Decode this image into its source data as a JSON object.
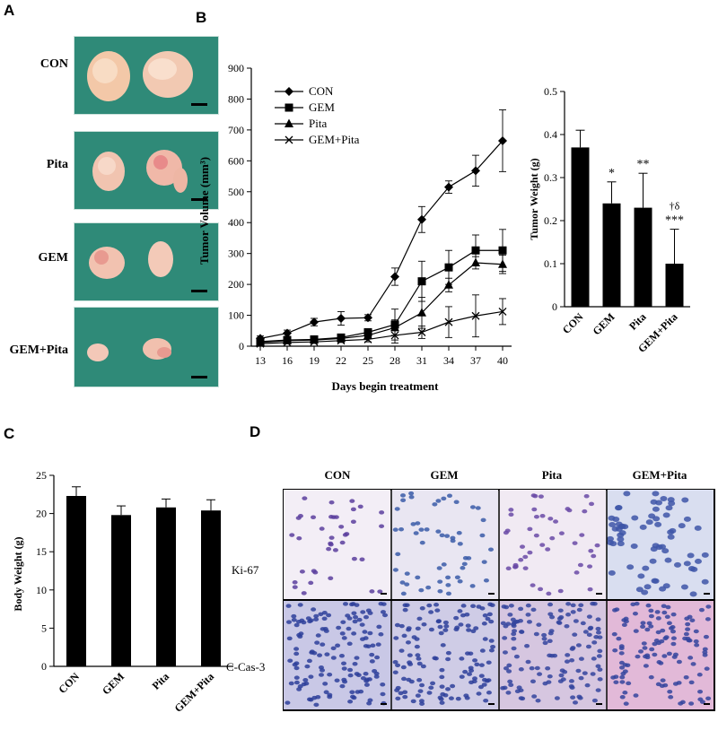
{
  "panels": {
    "a": {
      "letter": "A",
      "rows": [
        {
          "label": "CON"
        },
        {
          "label": "Pita"
        },
        {
          "label": "GEM"
        },
        {
          "label": "GEM+Pita"
        }
      ]
    },
    "b": {
      "letter": "B"
    },
    "c": {
      "letter": "C"
    },
    "d": {
      "letter": "D",
      "columns": [
        "CON",
        "GEM",
        "Pita",
        "GEM+Pita"
      ],
      "rows": [
        "Ki-67",
        "C-Cas-3"
      ]
    }
  },
  "chart_data": [
    {
      "id": "tumor-volume",
      "type": "line",
      "xlabel": "Days begin treatment",
      "ylabel": "Tumor Volume (mm³)",
      "x": [
        13,
        16,
        19,
        22,
        25,
        28,
        31,
        34,
        37,
        40
      ],
      "xlim": [
        12,
        41
      ],
      "ylim": [
        0,
        900
      ],
      "yticks": [
        0,
        100,
        200,
        300,
        400,
        500,
        600,
        700,
        800,
        900
      ],
      "legend_position": "top-left",
      "grid": false,
      "series": [
        {
          "name": "CON",
          "marker": "diamond",
          "values": [
            25,
            42,
            78,
            90,
            92,
            225,
            410,
            515,
            568,
            665
          ],
          "errors": [
            8,
            10,
            12,
            22,
            10,
            28,
            42,
            20,
            50,
            100
          ]
        },
        {
          "name": "GEM",
          "marker": "square",
          "values": [
            15,
            20,
            22,
            28,
            45,
            70,
            210,
            255,
            310,
            310
          ],
          "errors": [
            5,
            6,
            6,
            8,
            12,
            50,
            65,
            55,
            50,
            68
          ]
        },
        {
          "name": "Pita",
          "marker": "triangle",
          "values": [
            12,
            18,
            20,
            25,
            35,
            60,
            108,
            198,
            270,
            265
          ],
          "errors": [
            4,
            5,
            6,
            8,
            10,
            25,
            50,
            22,
            20,
            30
          ]
        },
        {
          "name": "GEM+Pita",
          "marker": "x",
          "values": [
            8,
            12,
            14,
            18,
            22,
            35,
            45,
            78,
            98,
            112
          ],
          "errors": [
            3,
            4,
            5,
            6,
            8,
            25,
            20,
            50,
            68,
            42
          ]
        }
      ]
    },
    {
      "id": "tumor-weight",
      "type": "bar",
      "ylabel": "Tumor Weight (g)",
      "categories": [
        "CON",
        "GEM",
        "Pita",
        "GEM+Pita"
      ],
      "values": [
        0.37,
        0.24,
        0.23,
        0.1
      ],
      "errors": [
        0.04,
        0.05,
        0.08,
        0.08
      ],
      "annotations": [
        "",
        "*",
        "**",
        "***"
      ],
      "annotations_top": [
        "",
        "",
        "",
        "†δ"
      ],
      "ylim": [
        0,
        0.5
      ],
      "yticks": [
        "0",
        "0.1",
        "0.2",
        "0.3",
        "0.4",
        "0.5"
      ],
      "bar_color": "#000000"
    },
    {
      "id": "body-weight",
      "type": "bar",
      "ylabel": "Body Weight (g)",
      "categories": [
        "CON",
        "GEM",
        "Pita",
        "GEM+Pita"
      ],
      "values": [
        22.3,
        19.8,
        20.8,
        20.4
      ],
      "errors": [
        1.2,
        1.2,
        1.1,
        1.4
      ],
      "ylim": [
        0,
        25
      ],
      "yticks": [
        "0",
        "5",
        "10",
        "15",
        "20",
        "25"
      ],
      "bar_color": "#000000"
    }
  ]
}
